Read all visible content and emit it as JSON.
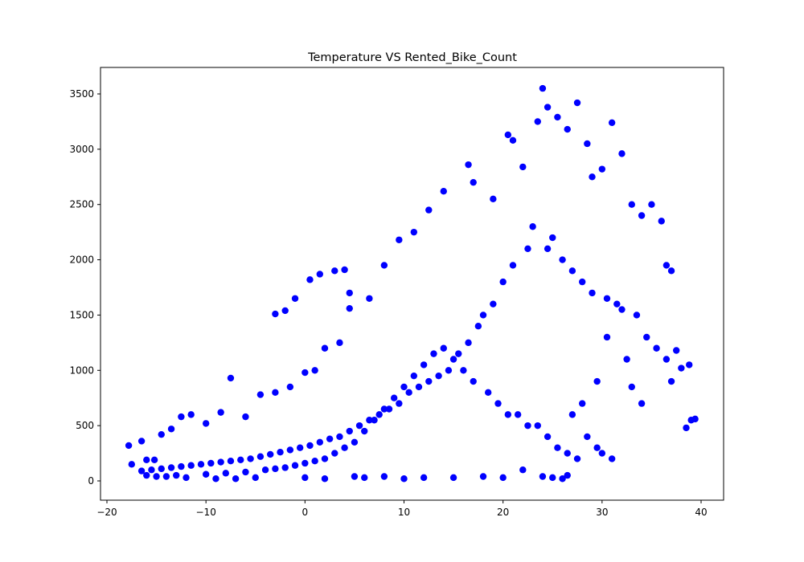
{
  "chart_data": {
    "type": "scatter",
    "title": "Temperature VS Rented_Bike_Count",
    "xlabel": "",
    "ylabel": "",
    "xlim": [
      -20,
      40
    ],
    "ylim": [
      0,
      3500
    ],
    "x_ticks": [
      "−20",
      "−10",
      "0",
      "10",
      "20",
      "30",
      "40"
    ],
    "y_ticks": [
      "0",
      "500",
      "1000",
      "1500",
      "2000",
      "2500",
      "3000",
      "3500"
    ],
    "grid": false,
    "legend": "none",
    "marker_color": "#0000ff",
    "series": [
      {
        "x": [
          -17.8,
          -17.5,
          -16.5,
          -16.0,
          -15.2,
          -14.5,
          -13.5,
          -12.5,
          -11.5,
          -10.0,
          -8.5,
          -7.5,
          -6.0,
          -4.5,
          -3.0,
          -2.0,
          -1.0,
          0.5,
          1.5,
          3.0,
          4.0,
          4.5,
          -3.0,
          -1.5,
          0.0,
          1.0,
          2.0,
          3.5,
          4.5,
          6.5,
          8.0,
          9.5,
          11.0,
          12.5,
          14.0,
          16.5,
          17.0,
          19.0,
          20.5,
          21.0,
          22.0,
          23.5,
          24.0,
          24.5,
          25.5,
          26.5,
          27.5,
          28.5,
          29.0,
          30.0,
          31.0,
          32.0,
          33.0,
          34.0,
          35.0,
          36.0,
          36.5,
          37.0,
          37.5,
          38.0,
          38.5,
          39.0,
          39.4,
          38.8,
          34.0,
          33.0,
          32.5,
          30.5,
          29.5,
          28.0,
          27.0,
          26.5,
          26.0,
          25.0,
          24.0,
          22.0,
          20.0,
          18.0,
          15.0,
          12.0,
          10.0,
          8.0,
          6.0,
          5.0,
          2.0,
          0.0,
          -5.0,
          -7.0,
          -9.0,
          -12.0,
          -14.0,
          -16.0,
          25.0,
          24.5,
          26.0,
          27.0,
          28.0,
          29.0,
          30.5,
          31.5,
          32.0,
          33.5,
          34.5,
          35.5,
          36.5,
          37.0,
          20.0,
          21.0,
          22.5,
          23.0,
          19.0,
          18.0,
          17.5,
          16.5,
          15.5,
          14.5,
          13.5,
          12.5,
          11.5,
          10.5,
          9.5,
          8.5,
          7.5,
          6.5,
          5.5,
          4.5,
          3.5,
          2.5,
          1.5,
          0.5,
          -0.5,
          -1.5,
          -2.5,
          -3.5,
          -4.5,
          -5.5,
          -6.5,
          -7.5,
          -8.5,
          -9.5,
          -10.5,
          -11.5,
          -12.5,
          -13.5,
          -14.5,
          -15.5,
          -16.5,
          28.5,
          29.5,
          30.0,
          31.0,
          23.5,
          24.5,
          25.5,
          26.5,
          27.5,
          21.5,
          22.5,
          19.5,
          20.5,
          18.5,
          17.0,
          16.0,
          15.0,
          14.0,
          13.0,
          12.0,
          11.0,
          10.0,
          9.0,
          8.0,
          7.0,
          6.0,
          5.0,
          4.0,
          3.0,
          2.0,
          1.0,
          0.0,
          -1.0,
          -2.0,
          -3.0,
          -4.0,
          -6.0,
          -8.0,
          -10.0,
          -13.0,
          -15.0
        ],
        "y": [
          320,
          150,
          360,
          190,
          190,
          420,
          470,
          580,
          600,
          520,
          620,
          930,
          580,
          780,
          1510,
          1540,
          1650,
          1820,
          1870,
          1900,
          1910,
          1560,
          800,
          850,
          980,
          1000,
          1200,
          1250,
          1700,
          1650,
          1950,
          2180,
          2250,
          2450,
          2620,
          2860,
          2700,
          2550,
          3130,
          3080,
          2840,
          3250,
          3550,
          3380,
          3290,
          3180,
          3420,
          3050,
          2750,
          2820,
          3240,
          2960,
          2500,
          2400,
          2500,
          2350,
          1950,
          1900,
          1180,
          1020,
          480,
          550,
          560,
          1050,
          700,
          850,
          1100,
          1300,
          900,
          700,
          600,
          50,
          20,
          30,
          40,
          100,
          30,
          40,
          30,
          30,
          20,
          40,
          30,
          40,
          20,
          30,
          30,
          20,
          20,
          30,
          40,
          50,
          2200,
          2100,
          2000,
          1900,
          1800,
          1700,
          1650,
          1600,
          1550,
          1500,
          1300,
          1200,
          1100,
          900,
          1800,
          1950,
          2100,
          2300,
          1600,
          1500,
          1400,
          1250,
          1150,
          1000,
          950,
          900,
          850,
          800,
          700,
          650,
          600,
          550,
          500,
          450,
          400,
          380,
          350,
          320,
          300,
          280,
          260,
          240,
          220,
          200,
          190,
          180,
          170,
          160,
          150,
          140,
          130,
          120,
          110,
          100,
          90,
          400,
          300,
          250,
          200,
          500,
          400,
          300,
          250,
          200,
          600,
          500,
          700,
          600,
          800,
          900,
          1000,
          1100,
          1200,
          1150,
          1050,
          950,
          850,
          750,
          650,
          550,
          450,
          350,
          300,
          250,
          200,
          180,
          160,
          140,
          120,
          110,
          100,
          80,
          70,
          60,
          50,
          40
        ]
      }
    ]
  }
}
